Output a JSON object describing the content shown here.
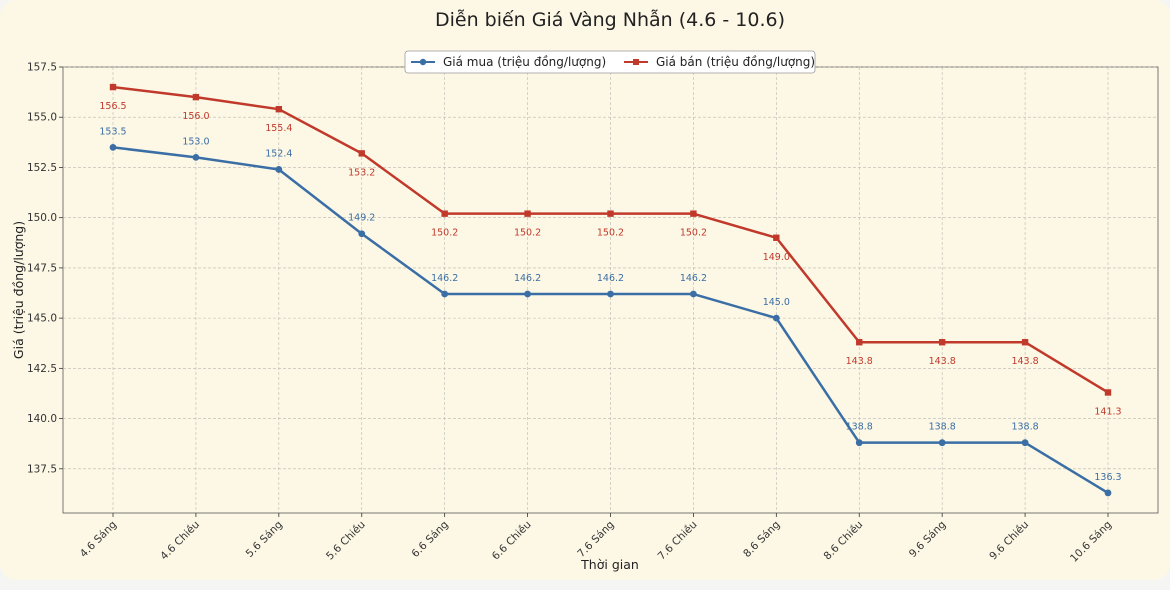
{
  "chart_data": {
    "type": "line",
    "title": "Diễn biến Giá Vàng Nhẫn (4.6 - 10.6)",
    "xlabel": "Thời gian",
    "ylabel": "Giá (triệu đồng/lượng)",
    "categories": [
      "4.6 Sáng",
      "4.6 Chiều",
      "5.6 Sáng",
      "5.6 Chiều",
      "6.6 Sáng",
      "6.6 Chiều",
      "7.6 Sáng",
      "7.6 Chiều",
      "8.6 Sáng",
      "8.6 Chiều",
      "9.6 Sáng",
      "9.6 Chiều",
      "10.6 Sáng"
    ],
    "ylim": [
      135.3,
      157.5
    ],
    "yticks": [
      "137.5",
      "140.0",
      "142.5",
      "145.0",
      "147.5",
      "150.0",
      "152.5",
      "155.0",
      "157.5"
    ],
    "grid": true,
    "legend_position": "top-center",
    "series": [
      {
        "name": "Giá mua (triệu đồng/lượng)",
        "color": "#3a6ea5",
        "marker": "circle",
        "label_position": "above",
        "values": [
          153.5,
          153.0,
          152.4,
          149.2,
          146.2,
          146.2,
          146.2,
          146.2,
          145.0,
          138.8,
          138.8,
          138.8,
          136.3
        ],
        "labels": [
          "153.5",
          "153.0",
          "152.4",
          "149.2",
          "146.2",
          "146.2",
          "146.2",
          "146.2",
          "145.0",
          "138.8",
          "138.8",
          "138.8",
          "136.3"
        ]
      },
      {
        "name": "Giá bán (triệu đồng/lượng)",
        "color": "#c0392b",
        "marker": "square",
        "label_position": "below",
        "values": [
          156.5,
          156.0,
          155.4,
          153.2,
          150.2,
          150.2,
          150.2,
          150.2,
          149.0,
          143.8,
          143.8,
          143.8,
          141.3
        ],
        "labels": [
          "156.5",
          "156.0",
          "155.4",
          "153.2",
          "150.2",
          "150.2",
          "150.2",
          "150.2",
          "149.0",
          "143.8",
          "143.8",
          "143.8",
          "141.3"
        ]
      }
    ]
  }
}
